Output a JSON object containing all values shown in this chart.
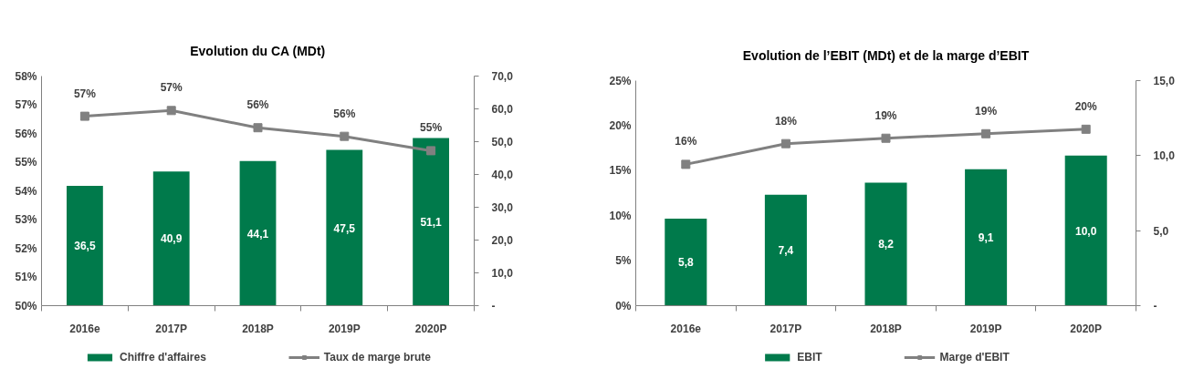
{
  "chart_data": [
    {
      "type": "bar",
      "title": "Evolution du CA (MDt)",
      "categories": [
        "2016e",
        "2017P",
        "2018P",
        "2019P",
        "2020P"
      ],
      "series": [
        {
          "name": "Chiffre d'affaires",
          "axis": "y2",
          "color": "#007a4b",
          "values": [
            36.5,
            40.9,
            44.1,
            47.5,
            51.1
          ],
          "value_labels": [
            "36,5",
            "40,9",
            "44,1",
            "47,5",
            "51,1"
          ]
        },
        {
          "name": "Taux de marge brute",
          "type": "line",
          "color": "#808080",
          "values": [
            56.6,
            56.8,
            56.2,
            55.9,
            55.4
          ],
          "value_labels": [
            "57%",
            "57%",
            "56%",
            "56%",
            "55%"
          ]
        }
      ],
      "ylim": [
        50,
        58
      ],
      "yticks": [
        {
          "value": 50,
          "label": "50%"
        },
        {
          "value": 51,
          "label": "51%"
        },
        {
          "value": 52,
          "label": "52%"
        },
        {
          "value": 53,
          "label": "53%"
        },
        {
          "value": 54,
          "label": "54%"
        },
        {
          "value": 55,
          "label": "55%"
        },
        {
          "value": 56,
          "label": "56%"
        },
        {
          "value": 57,
          "label": "57%"
        },
        {
          "value": 58,
          "label": "58%"
        }
      ],
      "y2lim": [
        0,
        70
      ],
      "y2ticks": [
        {
          "value": 0,
          "label": "-"
        },
        {
          "value": 10,
          "label": "10,0"
        },
        {
          "value": 20,
          "label": "20,0"
        },
        {
          "value": 30,
          "label": "30,0"
        },
        {
          "value": 40,
          "label": "40,0"
        },
        {
          "value": 50,
          "label": "50,0"
        },
        {
          "value": 60,
          "label": "60,0"
        },
        {
          "value": 70,
          "label": "70,0"
        }
      ],
      "marker": "square",
      "grid": false,
      "legend": "bottom"
    },
    {
      "type": "bar",
      "title": "Evolution de l’EBIT (MDt) et de la marge d’EBIT",
      "categories": [
        "2016e",
        "2017P",
        "2018P",
        "2019P",
        "2020P"
      ],
      "series": [
        {
          "name": "EBIT",
          "axis": "y2",
          "color": "#007a4b",
          "values": [
            5.8,
            7.4,
            8.2,
            9.1,
            10.0
          ],
          "value_labels": [
            "5,8",
            "7,4",
            "8,2",
            "9,1",
            "10,0"
          ]
        },
        {
          "name": "Marge d'EBIT",
          "type": "line",
          "color": "#808080",
          "values": [
            15.7,
            18.0,
            18.6,
            19.1,
            19.6
          ],
          "value_labels": [
            "16%",
            "18%",
            "19%",
            "19%",
            "20%"
          ]
        }
      ],
      "ylim": [
        0,
        25
      ],
      "yticks": [
        {
          "value": 0,
          "label": "0%"
        },
        {
          "value": 5,
          "label": "5%"
        },
        {
          "value": 10,
          "label": "10%"
        },
        {
          "value": 15,
          "label": "15%"
        },
        {
          "value": 20,
          "label": "20%"
        },
        {
          "value": 25,
          "label": "25%"
        }
      ],
      "y2lim": [
        0,
        15
      ],
      "y2ticks": [
        {
          "value": 0,
          "label": "-"
        },
        {
          "value": 5,
          "label": "5,0"
        },
        {
          "value": 10,
          "label": "10,0"
        },
        {
          "value": 15,
          "label": "15,0"
        }
      ],
      "marker": "square",
      "grid": false,
      "legend": "bottom"
    }
  ]
}
